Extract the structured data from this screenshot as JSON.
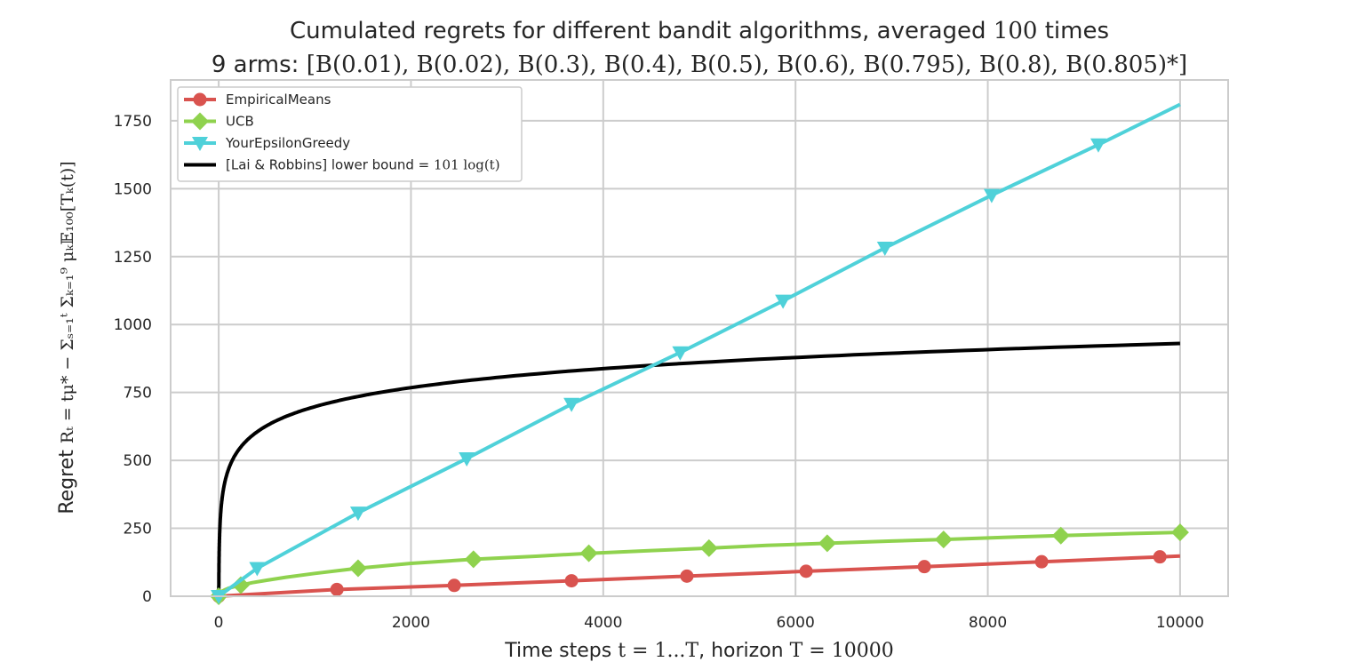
{
  "chart_data": {
    "type": "line",
    "title_line1_text": "Cumulated regrets for different bandit algorithms, averaged ",
    "title_line1_math": "100",
    "title_line1_suffix": " times",
    "title_line2_text": "9 arms: ",
    "title_line2_math": "[B(0.01), B(0.02), B(0.3), B(0.4), B(0.5), B(0.6), B(0.795), B(0.8), B(0.805)*]",
    "xlabel_text": "Time steps ",
    "xlabel_math1": "t = 1...T",
    "xlabel_mid": ", horizon ",
    "xlabel_math2": "T = 10000",
    "ylabel_text": "Regret ",
    "ylabel_math": "Rₜ = tμ* − Σₛ₌₁ᵗ Σₖ₌₁⁹ μₖ𝔼₁₀₀[Tₖ(t)]",
    "xlim": [
      -500,
      10500
    ],
    "ylim": [
      0,
      1900
    ],
    "xticks": [
      0,
      2000,
      4000,
      6000,
      8000,
      10000
    ],
    "yticks": [
      0,
      250,
      500,
      750,
      1000,
      1250,
      1500,
      1750
    ],
    "grid": true,
    "legend_position": "top-left",
    "series": [
      {
        "name": "EmpiricalMeans",
        "color": "#d9534f",
        "marker": "circle",
        "x": [
          0,
          1230,
          2450,
          3670,
          4870,
          6110,
          7340,
          8560,
          9790,
          10000
        ],
        "y": [
          0,
          25,
          40,
          57,
          74,
          92,
          109,
          127,
          145,
          148
        ]
      },
      {
        "name": "UCB",
        "color": "#8fd24e",
        "marker": "diamond",
        "x": [
          0,
          10,
          30,
          60,
          100,
          150,
          230,
          350,
          500,
          700,
          1000,
          1450,
          2000,
          2650,
          3300,
          3850,
          4500,
          5100,
          5700,
          6330,
          7000,
          7540,
          8200,
          8760,
          9400,
          10000
        ],
        "y": [
          0,
          9,
          17,
          23,
          29,
          34,
          41,
          50,
          59,
          70,
          84,
          103,
          121,
          136,
          147,
          158,
          168,
          177,
          187,
          195,
          203,
          209,
          217,
          223,
          230,
          235
        ]
      },
      {
        "name": "YourEpsilonGreedy",
        "color": "#4fd1d9",
        "marker": "triangle-down",
        "x": [
          0,
          400,
          1450,
          2580,
          3670,
          4800,
          5870,
          6930,
          8040,
          9150,
          10000
        ],
        "y": [
          0,
          103,
          307,
          507,
          707,
          897,
          1087,
          1282,
          1476,
          1662,
          1810
        ]
      },
      {
        "name": "[Lai & Robbins] lower bound = ",
        "name_math": "101 log(t)",
        "color": "#000000",
        "marker": "none",
        "function": "lai_robbins",
        "coefficient": 101,
        "x_start": 1,
        "x_end": 10000
      }
    ]
  }
}
